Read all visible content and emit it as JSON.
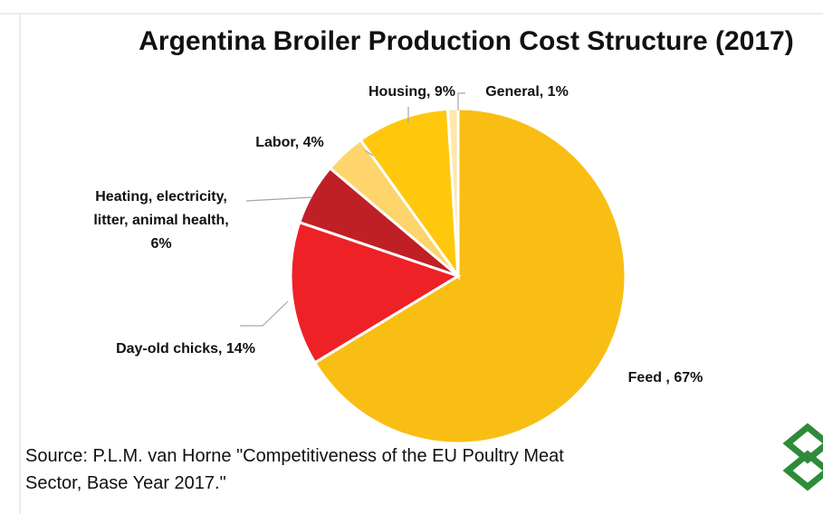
{
  "chart_data": {
    "type": "pie",
    "title": "Argentina Broiler Production Cost Structure (2017)",
    "values": [
      67,
      14,
      6,
      4,
      9,
      1
    ],
    "value_labels": [
      "Feed , 67%",
      "Day-old chicks, 14%",
      "Heating, electricity,\nlitter, animal health,\n6%",
      "Labor, 4%",
      "Housing, 9%",
      "General, 1%"
    ],
    "colors": [
      "#F9BE14",
      "#EE2127",
      "#BF2026",
      "#FDD56C",
      "#FFC80C",
      "#FFE9A8"
    ],
    "source": "Source: P.L.M. van Horne \"Competitiveness of the EU Poultry Meat\nSector, Base Year 2017.\""
  }
}
